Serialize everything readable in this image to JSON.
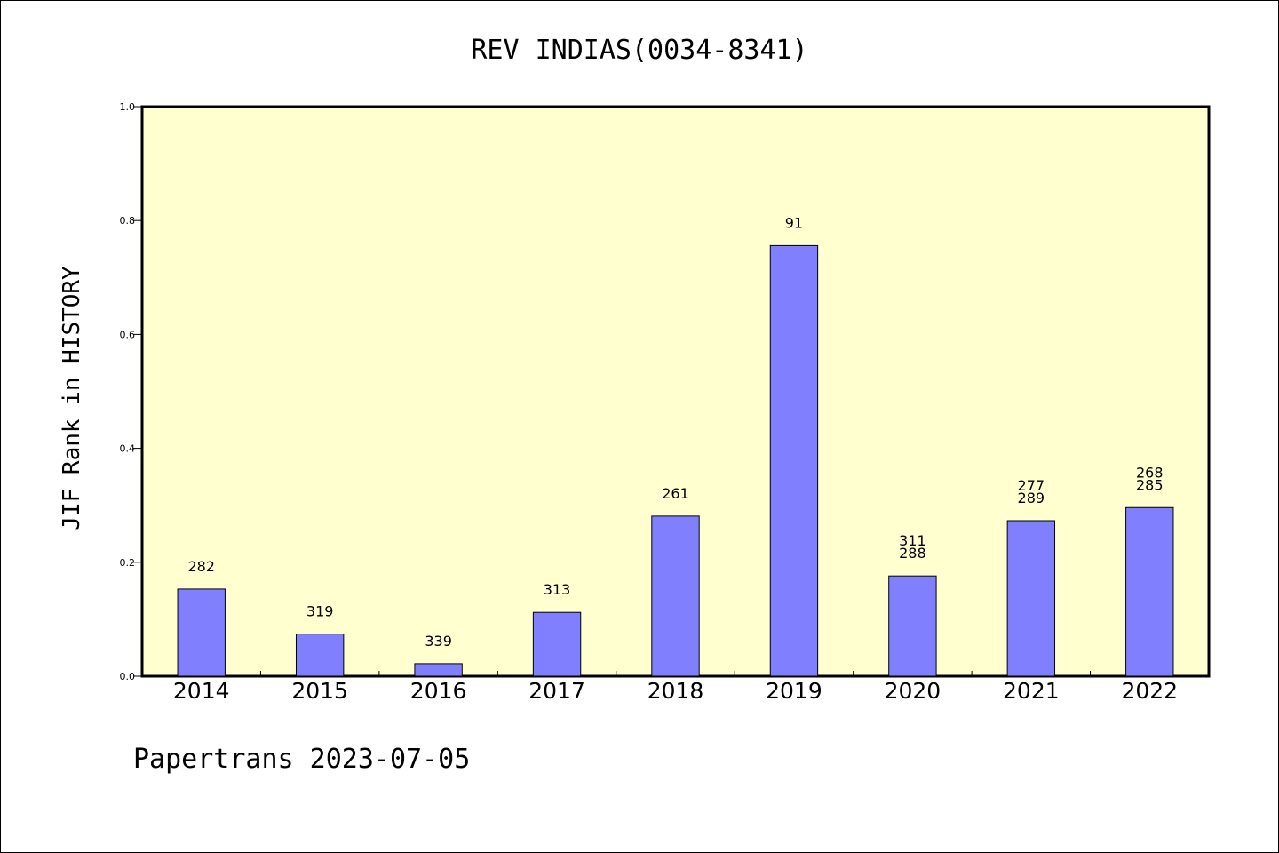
{
  "chart_data": {
    "type": "bar",
    "title": "REV INDIAS(0034-8341)",
    "xlabel": "",
    "ylabel": "JIF Rank in HISTORY",
    "ylim": [
      0,
      1.0
    ],
    "yticks": [
      "0.0",
      "0.2",
      "0.4",
      "0.6",
      "0.8",
      "1.0"
    ],
    "categories": [
      "2014",
      "2015",
      "2016",
      "2017",
      "2018",
      "2019",
      "2020",
      "2021",
      "2022"
    ],
    "values": [
      0.153,
      0.074,
      0.022,
      0.112,
      0.281,
      0.756,
      0.176,
      0.273,
      0.296
    ],
    "bar_labels": [
      [
        "282"
      ],
      [
        "319"
      ],
      [
        "339"
      ],
      [
        "313"
      ],
      [
        "261"
      ],
      [
        "91"
      ],
      [
        "311",
        "288"
      ],
      [
        "277",
        "289"
      ],
      [
        "268",
        "285"
      ]
    ],
    "colors": {
      "plot_background": "#ffffd0",
      "bar_fill": "#8080ff",
      "bar_stroke": "#000000"
    },
    "grid": false,
    "legend": "none"
  },
  "footer": {
    "text": "Papertrans 2023-07-05"
  }
}
